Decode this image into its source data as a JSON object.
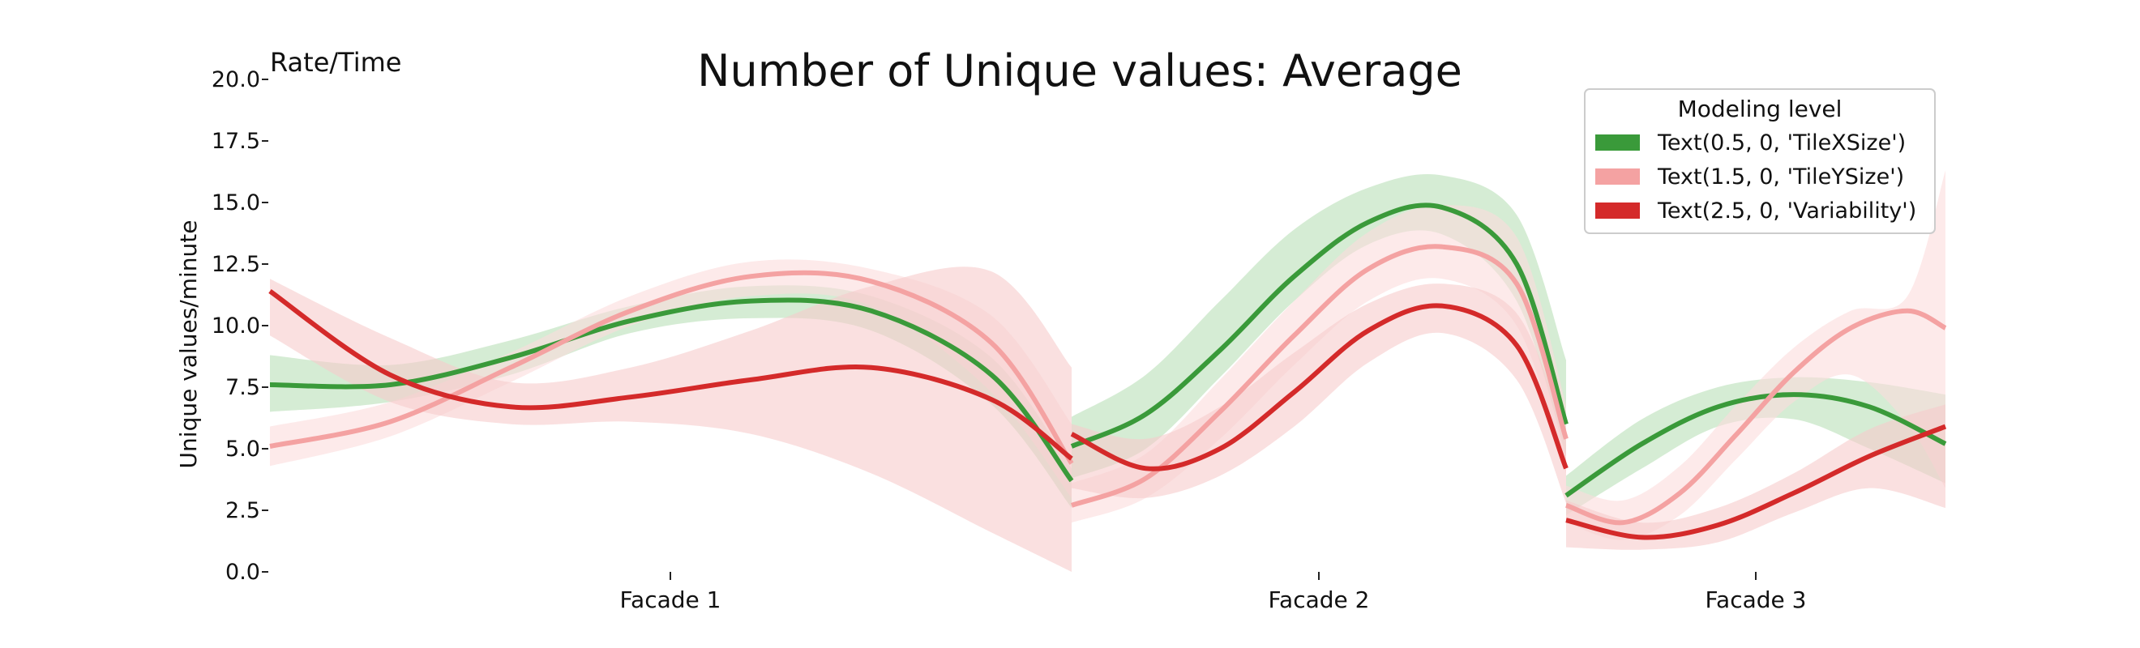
{
  "chart_data": {
    "type": "line",
    "title": "Number of Unique values: Average",
    "corner_label": "Rate/Time",
    "xlabel": "",
    "ylabel": "Unique values/minute",
    "ylim": [
      0,
      20
    ],
    "yticks": [
      "0.0",
      "2.5",
      "5.0",
      "7.5",
      "10.0",
      "12.5",
      "15.0",
      "17.5",
      "20.0"
    ],
    "grid": false,
    "legend": {
      "title": "Modeling level",
      "placement": "top-right"
    },
    "categories": [
      "Facade 1",
      "Facade 2",
      "Facade 3"
    ],
    "series": [
      {
        "name": "Text(0.5, 0, 'TileXSize')",
        "color": "#3a9a3a",
        "band_color": "#b9dfb7",
        "segments": [
          {
            "category": "Facade 1",
            "x": [
              0,
              0.15,
              0.3,
              0.45,
              0.6,
              0.75,
              0.9,
              1.0
            ],
            "y": [
              7.6,
              7.6,
              8.7,
              10.2,
              11.0,
              10.6,
              8.0,
              3.7
            ],
            "lower": [
              6.5,
              6.9,
              8.0,
              9.7,
              10.3,
              9.8,
              6.8,
              2.6
            ],
            "upper": [
              8.8,
              8.4,
              9.4,
              10.8,
              11.6,
              11.2,
              8.7,
              4.2
            ]
          },
          {
            "category": "Facade 2",
            "x": [
              0,
              0.15,
              0.3,
              0.45,
              0.6,
              0.75,
              0.9,
              1.0
            ],
            "y": [
              5.1,
              6.4,
              9.0,
              12.0,
              14.2,
              14.8,
              12.5,
              6.0
            ],
            "lower": [
              3.8,
              5.0,
              7.9,
              11.0,
              13.3,
              13.7,
              11.0,
              4.7
            ],
            "upper": [
              6.3,
              8.0,
              11.0,
              13.9,
              15.6,
              16.1,
              14.5,
              8.6
            ]
          },
          {
            "category": "Facade 3",
            "x": [
              0,
              0.2,
              0.4,
              0.6,
              0.8,
              1.0
            ],
            "y": [
              3.1,
              5.2,
              6.7,
              7.2,
              6.7,
              5.2
            ],
            "lower": [
              2.3,
              4.2,
              5.9,
              6.2,
              5.0,
              3.6
            ],
            "upper": [
              3.9,
              6.2,
              7.5,
              7.9,
              7.7,
              7.2
            ]
          }
        ]
      },
      {
        "name": "Text(1.5, 0, 'TileYSize')",
        "color": "#f4a2a2",
        "band_color": "#fbdcdc",
        "segments": [
          {
            "category": "Facade 1",
            "x": [
              0,
              0.15,
              0.3,
              0.45,
              0.6,
              0.75,
              0.9,
              1.0
            ],
            "y": [
              5.1,
              6.1,
              8.3,
              10.6,
              12.0,
              11.8,
              9.3,
              4.4
            ],
            "lower": [
              4.3,
              5.5,
              7.7,
              10.0,
              11.2,
              10.8,
              7.3,
              3.0
            ],
            "upper": [
              5.9,
              6.9,
              8.9,
              11.2,
              12.6,
              12.3,
              10.4,
              6.0
            ]
          },
          {
            "category": "Facade 2",
            "x": [
              0,
              0.15,
              0.3,
              0.45,
              0.6,
              0.75,
              0.9,
              1.0
            ],
            "y": [
              2.7,
              3.8,
              6.5,
              9.6,
              12.3,
              13.2,
              11.7,
              5.4
            ],
            "lower": [
              2.0,
              3.0,
              5.4,
              8.4,
              11.0,
              11.9,
              10.0,
              4.0
            ],
            "upper": [
              3.6,
              4.8,
              7.8,
              11.0,
              13.8,
              14.9,
              13.6,
              6.8
            ]
          },
          {
            "category": "Facade 3",
            "x": [
              0,
              0.15,
              0.3,
              0.45,
              0.6,
              0.75,
              0.9,
              1.0
            ],
            "y": [
              2.7,
              2.0,
              3.2,
              5.6,
              8.1,
              9.9,
              10.6,
              9.9
            ],
            "lower": [
              2.0,
              1.3,
              2.3,
              4.6,
              6.9,
              8.0,
              6.0,
              3.4
            ],
            "upper": [
              3.5,
              2.9,
              4.3,
              6.8,
              9.1,
              10.6,
              11.2,
              16.3
            ]
          }
        ]
      },
      {
        "name": "Text(2.5, 0, 'Variability')",
        "color": "#d42a2a",
        "band_color": "#f6cccc",
        "segments": [
          {
            "category": "Facade 1",
            "x": [
              0,
              0.15,
              0.3,
              0.45,
              0.6,
              0.75,
              0.9,
              1.0
            ],
            "y": [
              11.4,
              8.0,
              6.7,
              7.1,
              7.8,
              8.3,
              7.0,
              4.6
            ],
            "lower": [
              9.6,
              6.9,
              6.0,
              6.1,
              5.6,
              4.0,
              1.6,
              0.0
            ],
            "upper": [
              11.9,
              9.5,
              7.7,
              8.3,
              9.8,
              11.6,
              12.2,
              8.3
            ]
          },
          {
            "category": "Facade 2",
            "x": [
              0,
              0.15,
              0.3,
              0.45,
              0.6,
              0.75,
              0.9,
              1.0
            ],
            "y": [
              5.6,
              4.2,
              5.0,
              7.3,
              9.8,
              10.8,
              9.2,
              4.2
            ],
            "lower": [
              3.4,
              3.0,
              3.9,
              5.9,
              8.5,
              9.7,
              7.8,
              2.8
            ],
            "upper": [
              6.0,
              5.4,
              6.7,
              8.9,
              10.9,
              11.7,
              10.5,
              5.6
            ]
          },
          {
            "category": "Facade 3",
            "x": [
              0,
              0.2,
              0.4,
              0.6,
              0.8,
              1.0
            ],
            "y": [
              2.1,
              1.4,
              1.9,
              3.2,
              4.7,
              5.9
            ],
            "lower": [
              1.0,
              0.9,
              1.2,
              2.4,
              3.4,
              2.6
            ],
            "upper": [
              2.9,
              2.0,
              2.6,
              4.0,
              5.8,
              6.8
            ]
          }
        ]
      }
    ]
  }
}
